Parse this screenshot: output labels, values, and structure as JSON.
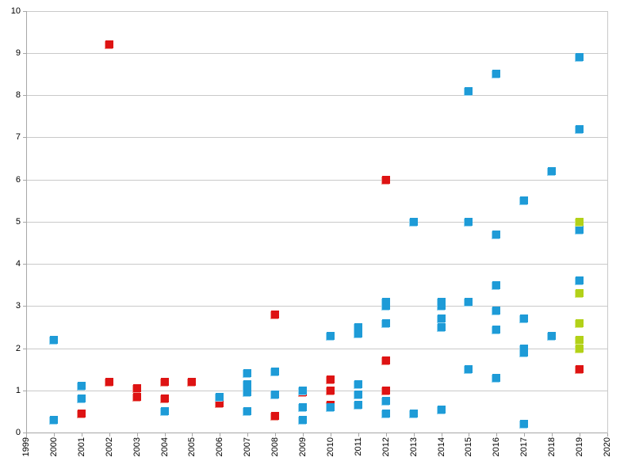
{
  "chart_data": {
    "type": "scatter",
    "title": "",
    "xlabel": "",
    "ylabel": "",
    "xlim": [
      1999,
      2020
    ],
    "ylim": [
      0,
      10
    ],
    "x_tick_labels": [
      "1999",
      "2000",
      "2001",
      "2002",
      "2003",
      "2004",
      "2005",
      "2006",
      "2007",
      "2008",
      "2009",
      "2010",
      "2011",
      "2012",
      "2013",
      "2014",
      "2015",
      "2016",
      "2017",
      "2018",
      "2019",
      "2020"
    ],
    "y_tick_labels": [
      "0",
      "1",
      "2",
      "3",
      "4",
      "5",
      "6",
      "7",
      "8",
      "9",
      "10"
    ],
    "grid": "horizontal gridlines at every integer, no vertical gridlines",
    "legend": "none",
    "marker": "square",
    "series": [
      {
        "name": "red-series",
        "color": "#de1313",
        "edge": "#f0968d",
        "points": [
          [
            2001,
            0.45
          ],
          [
            2002,
            9.2
          ],
          [
            2002,
            1.2
          ],
          [
            2003,
            1.05
          ],
          [
            2003,
            0.85
          ],
          [
            2004,
            1.2
          ],
          [
            2004,
            0.8
          ],
          [
            2005,
            1.2
          ],
          [
            2006,
            0.7
          ],
          [
            2008,
            2.8
          ],
          [
            2008,
            0.4
          ],
          [
            2009,
            0.95
          ],
          [
            2010,
            1.25
          ],
          [
            2010,
            1.0
          ],
          [
            2010,
            0.65
          ],
          [
            2012,
            6.0
          ],
          [
            2012,
            1.7
          ],
          [
            2012,
            1.0
          ],
          [
            2019,
            1.5
          ]
        ]
      },
      {
        "name": "blue-series",
        "color": "#1e9bd7",
        "edge": "#93d3f0",
        "points": [
          [
            2000,
            2.2
          ],
          [
            2000,
            0.3
          ],
          [
            2001,
            1.1
          ],
          [
            2001,
            0.8
          ],
          [
            2004,
            0.5
          ],
          [
            2006,
            0.85
          ],
          [
            2007,
            1.4
          ],
          [
            2007,
            1.15
          ],
          [
            2007,
            0.95
          ],
          [
            2007,
            0.5
          ],
          [
            2008,
            1.45
          ],
          [
            2008,
            0.9
          ],
          [
            2009,
            1.0
          ],
          [
            2009,
            0.6
          ],
          [
            2009,
            0.3
          ],
          [
            2010,
            2.3
          ],
          [
            2010,
            0.6
          ],
          [
            2011,
            2.5
          ],
          [
            2011,
            2.35
          ],
          [
            2011,
            1.15
          ],
          [
            2011,
            0.9
          ],
          [
            2011,
            0.65
          ],
          [
            2012,
            3.1
          ],
          [
            2012,
            3.0
          ],
          [
            2012,
            2.6
          ],
          [
            2012,
            0.75
          ],
          [
            2012,
            0.45
          ],
          [
            2013,
            5.0
          ],
          [
            2013,
            0.45
          ],
          [
            2014,
            3.1
          ],
          [
            2014,
            3.0
          ],
          [
            2014,
            2.7
          ],
          [
            2014,
            2.5
          ],
          [
            2014,
            0.55
          ],
          [
            2015,
            8.1
          ],
          [
            2015,
            5.0
          ],
          [
            2015,
            3.1
          ],
          [
            2015,
            1.5
          ],
          [
            2016,
            8.5
          ],
          [
            2016,
            4.7
          ],
          [
            2016,
            3.5
          ],
          [
            2016,
            2.9
          ],
          [
            2016,
            2.45
          ],
          [
            2016,
            1.3
          ],
          [
            2017,
            5.5
          ],
          [
            2017,
            2.7
          ],
          [
            2017,
            2.0
          ],
          [
            2017,
            1.9
          ],
          [
            2017,
            0.2
          ],
          [
            2018,
            6.2
          ],
          [
            2018,
            2.3
          ],
          [
            2019,
            8.9
          ],
          [
            2019,
            7.2
          ],
          [
            2019,
            4.8
          ],
          [
            2019,
            3.6
          ]
        ]
      },
      {
        "name": "green-series",
        "color": "#b2d118",
        "edge": "#dce985",
        "points": [
          [
            2019,
            5.0
          ],
          [
            2019,
            3.3
          ],
          [
            2019,
            2.6
          ],
          [
            2019,
            2.2
          ],
          [
            2019,
            2.0
          ]
        ]
      }
    ]
  }
}
